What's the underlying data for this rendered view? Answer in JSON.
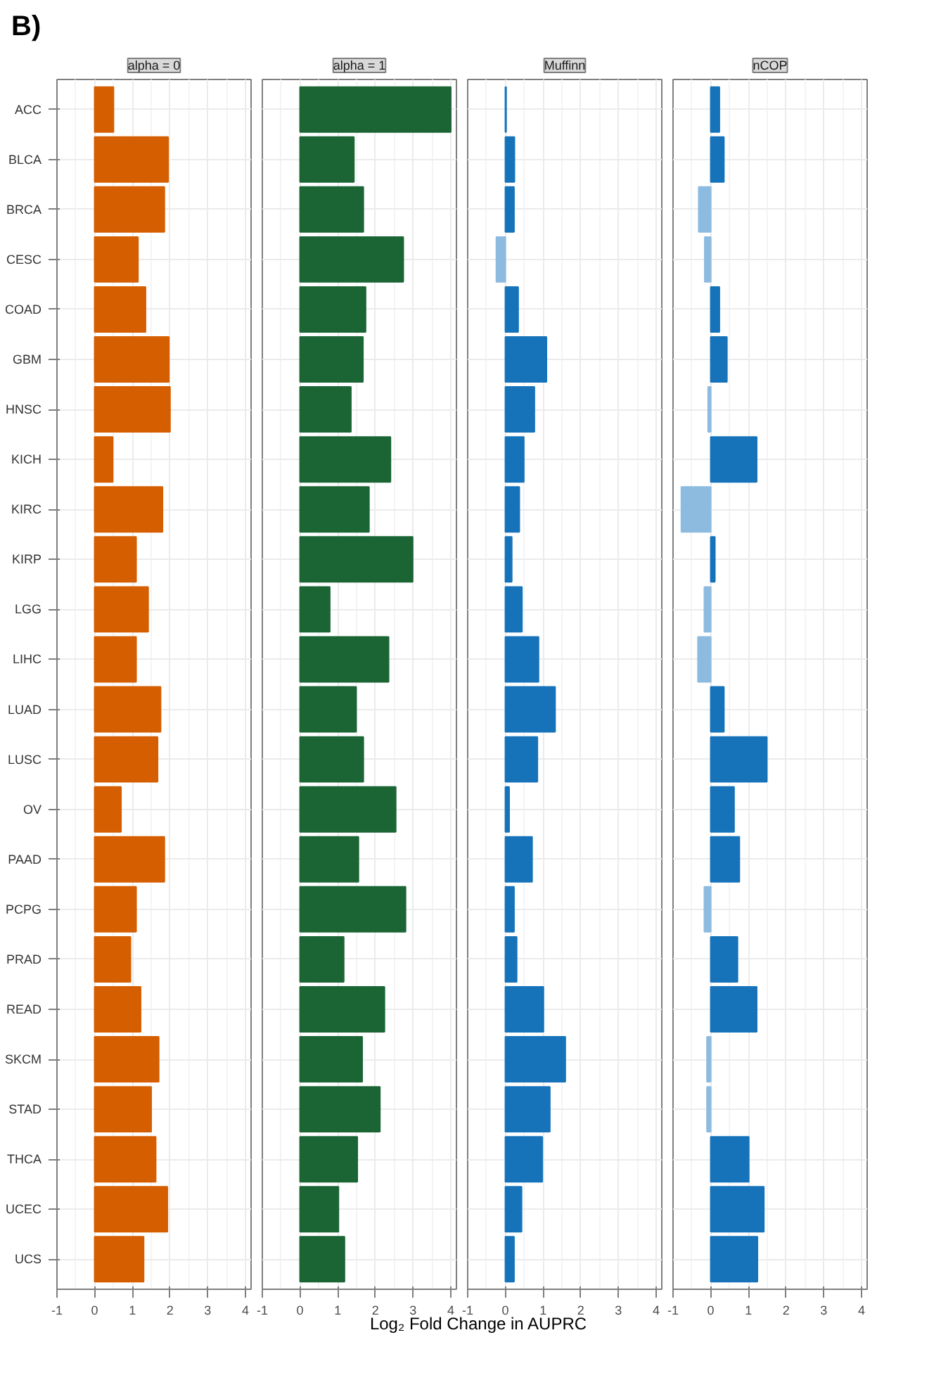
{
  "chart_data": [
    {
      "type": "bar",
      "orientation": "horizontal",
      "title": "alpha = 0",
      "annotations": [
        "B)"
      ],
      "categories": [
        "ACC",
        "BLCA",
        "BRCA",
        "CESC",
        "COAD",
        "GBM",
        "HNSC",
        "KICH",
        "KIRC",
        "KIRP",
        "LGG",
        "LIHC",
        "LUAD",
        "LUSC",
        "OV",
        "PAAD",
        "PCPG",
        "PRAD",
        "READ",
        "SKCM",
        "STAD",
        "THCA",
        "UCEC",
        "UCS"
      ],
      "values": [
        0.5,
        1.95,
        1.85,
        1.15,
        1.35,
        1.97,
        2.0,
        0.48,
        1.8,
        1.1,
        1.42,
        1.1,
        1.75,
        1.67,
        0.7,
        1.85,
        1.1,
        0.95,
        1.22,
        1.7,
        1.5,
        1.62,
        1.93,
        1.3
      ],
      "color": "#d55e00",
      "xlim": [
        -1,
        4.15
      ],
      "xticks": [
        -1,
        0,
        1,
        2,
        3,
        4
      ],
      "grid": true
    },
    {
      "type": "bar",
      "orientation": "horizontal",
      "title": "alpha = 1",
      "xlabel": "Log₂ Fold Change in AUPRC",
      "values": [
        4.0,
        1.43,
        1.68,
        2.74,
        1.74,
        1.67,
        1.35,
        2.4,
        1.83,
        2.99,
        0.79,
        2.35,
        1.49,
        1.68,
        2.54,
        1.55,
        2.8,
        1.16,
        2.24,
        1.65,
        2.12,
        1.52,
        1.02,
        1.18
      ],
      "color": "#1b6535",
      "xlim": [
        -1,
        4.15
      ],
      "xticks": [
        -1,
        0,
        1,
        2,
        3,
        4
      ],
      "grid": true,
      "tick_labels": "x"
    },
    {
      "type": "bar",
      "orientation": "horizontal",
      "title": "Muffinn",
      "values": [
        0.02,
        0.24,
        0.23,
        -0.24,
        0.34,
        1.09,
        0.77,
        0.49,
        0.37,
        0.17,
        0.44,
        0.88,
        1.32,
        0.85,
        0.1,
        0.71,
        0.23,
        0.3,
        1.01,
        1.59,
        1.18,
        0.98,
        0.43,
        0.23
      ],
      "colors": [
        "#1673ba",
        "#1673ba",
        "#1673ba",
        "#8dbbe0",
        "#1673ba",
        "#1673ba",
        "#1673ba",
        "#1673ba",
        "#1673ba",
        "#1673ba",
        "#1673ba",
        "#1673ba",
        "#1673ba",
        "#1673ba",
        "#1673ba",
        "#1673ba",
        "#1673ba",
        "#1673ba",
        "#1673ba",
        "#1673ba",
        "#1673ba",
        "#1673ba",
        "#1673ba",
        "#1673ba"
      ],
      "xlim": [
        -1,
        4.15
      ],
      "xticks": [
        -1,
        0,
        1,
        2,
        3,
        4
      ],
      "grid": true,
      "tick_labels": "x"
    },
    {
      "type": "bar",
      "orientation": "horizontal",
      "title": "nCOP",
      "values": [
        0.23,
        0.35,
        -0.32,
        -0.16,
        0.23,
        0.43,
        -0.07,
        1.22,
        -0.78,
        0.11,
        -0.17,
        -0.34,
        0.35,
        1.49,
        0.62,
        0.76,
        -0.17,
        0.71,
        1.22,
        -0.1,
        -0.1,
        1.01,
        1.41,
        1.24
      ],
      "colors": [
        "#1673ba",
        "#1673ba",
        "#8dbbe0",
        "#8dbbe0",
        "#1673ba",
        "#1673ba",
        "#8dbbe0",
        "#1673ba",
        "#8dbbe0",
        "#1673ba",
        "#8dbbe0",
        "#8dbbe0",
        "#1673ba",
        "#1673ba",
        "#1673ba",
        "#1673ba",
        "#8dbbe0",
        "#1673ba",
        "#1673ba",
        "#8dbbe0",
        "#8dbbe0",
        "#1673ba",
        "#1673ba",
        "#1673ba"
      ],
      "xlim": [
        -1,
        4.15
      ],
      "xticks": [
        -1,
        0,
        1,
        2,
        3,
        4
      ],
      "grid": true,
      "tick_labels": "x"
    }
  ]
}
